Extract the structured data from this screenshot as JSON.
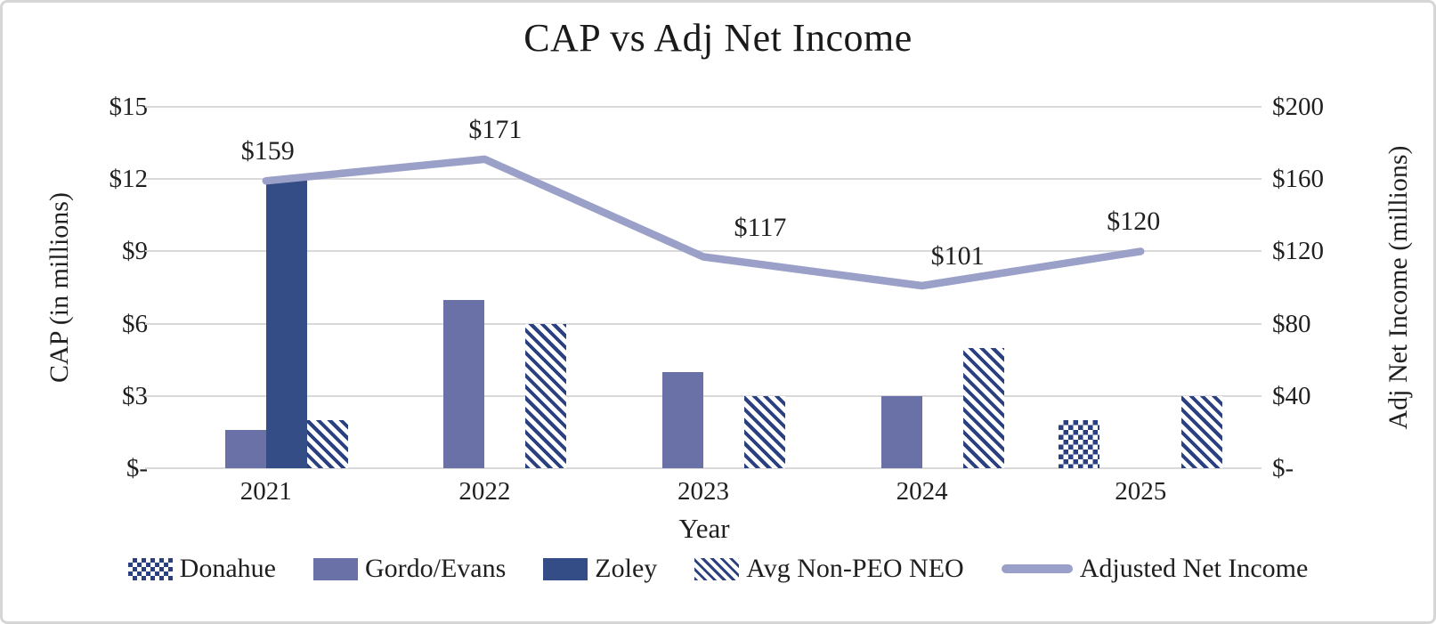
{
  "chart_data": {
    "type": "combo-bar-line",
    "title": "CAP vs Adj Net Income",
    "x_axis": {
      "label": "Year",
      "categories": [
        "2021",
        "2022",
        "2023",
        "2024",
        "2025"
      ]
    },
    "left_axis": {
      "label": "CAP (in millions)",
      "ticks": [
        "$15",
        "$12",
        "$9",
        "$6",
        "$3",
        "$-"
      ],
      "min": 0,
      "max": 15
    },
    "right_axis": {
      "label": "Adj Net Income (millions)",
      "ticks": [
        "$200",
        "$160",
        "$120",
        "$80",
        "$40",
        "$-"
      ],
      "min": 0,
      "max": 200
    },
    "grid": "horizontal-on",
    "legend_position": "bottom",
    "bar_series": [
      {
        "name": "Donahue",
        "pattern": "checker",
        "values": [
          0,
          0,
          0,
          0,
          2
        ]
      },
      {
        "name": "Gordo/Evans",
        "pattern": "solid-medium",
        "values": [
          1.6,
          7,
          4,
          3,
          0
        ]
      },
      {
        "name": "Zoley",
        "pattern": "solid-dark",
        "values": [
          12,
          0,
          0,
          0,
          0
        ]
      },
      {
        "name": "Avg Non-PEO NEO",
        "pattern": "stripes",
        "values": [
          2,
          6,
          3,
          5,
          3
        ]
      }
    ],
    "line_series": {
      "name": "Adjusted Net Income",
      "axis": "right",
      "values": [
        159,
        171,
        117,
        101,
        120
      ],
      "labels": [
        "$159",
        "$171",
        "$117",
        "$101",
        "$120"
      ]
    },
    "colors": {
      "solid_dark": "#344d86",
      "solid_medium": "#6a71a7",
      "pattern_navy": "#2b4080",
      "line": "#9aa0c7",
      "gridline": "#d9d9d9",
      "text": "#1f1f1f",
      "border": "#d6d6d6"
    }
  }
}
